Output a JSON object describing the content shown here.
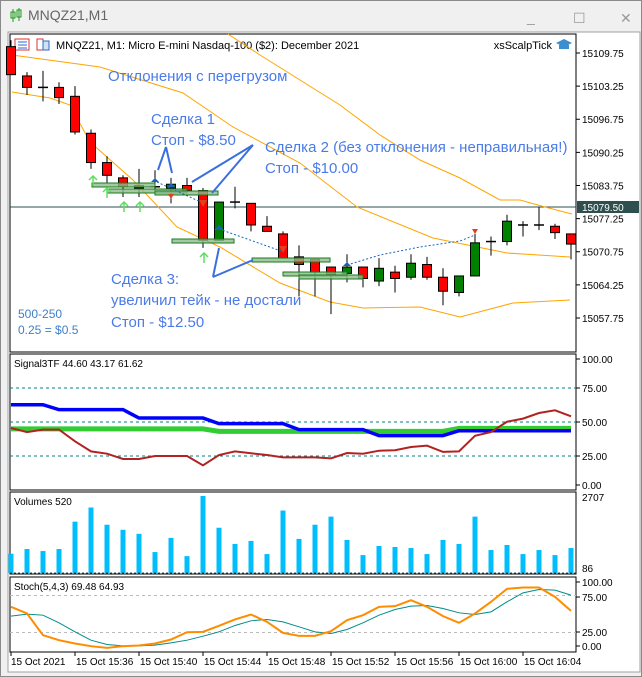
{
  "window": {
    "title": "MNQZ21,M1",
    "controls": {
      "minimize": "_",
      "maximize": "☐",
      "close": "✕"
    }
  },
  "chart_header": {
    "symbol_info": "MNQZ21, M1:  Micro E-mini Nasdaq-100 ($2): December 2021",
    "expert_name": "xsScalpTick"
  },
  "annotations": {
    "title": "Отклонения с перегрузом",
    "trade1_line1": "Сделка 1",
    "trade1_line2": "Стоп - $8.50",
    "trade2_line1": "Сделка 2 (без отклонения - неправильная!)",
    "trade2_line2": "Стоп - $10.00",
    "trade3_line1": "Сделка 3:",
    "trade3_line2": "увеличил тейк - не достали",
    "trade3_line3": "Стоп - $12.50",
    "note1": "500-250",
    "note2": "0.25 = $0.5"
  },
  "colors": {
    "bull": "#008000",
    "bear": "#ff0000",
    "band": "#ffa500",
    "annotation": "#4a7be8",
    "signal_blue": "#0000ff",
    "signal_green": "#32cd32",
    "signal_red": "#b22222",
    "volume": "#00bfff",
    "stoch_main": "#ff8c00",
    "stoch_signal": "#008b8b"
  },
  "chart_data": [
    {
      "type": "candlestick",
      "title": "MNQZ21, M1",
      "current_price_label": "15079.50",
      "current_price": 15079.5,
      "ylim": [
        15049.5,
        15113.5
      ],
      "yticks": [
        "15109.75",
        "15103.25",
        "15096.75",
        "15090.25",
        "15083.75",
        "15077.25",
        "15070.75",
        "15064.25",
        "15057.75"
      ],
      "xticks": [
        "15 Oct 2021",
        "15 Oct 15:36",
        "15 Oct 15:40",
        "15 Oct 15:44",
        "15 Oct 15:48",
        "15 Oct 15:52",
        "15 Oct 15:56",
        "15 Oct 16:00",
        "15 Oct 16:04"
      ],
      "ohlc": [
        [
          15111,
          15112.25,
          15105.5,
          15105.5
        ],
        [
          15105.25,
          15106,
          15101.5,
          15103
        ],
        [
          15103,
          15106.25,
          15100.25,
          15103
        ],
        [
          15103,
          15104,
          15099.75,
          15101
        ],
        [
          15101.25,
          15103.25,
          15093.75,
          15094.25
        ],
        [
          15094,
          15094.75,
          15087,
          15088.25
        ],
        [
          15088.25,
          15089.5,
          15084.25,
          15085.75
        ],
        [
          15085.25,
          15085.75,
          15081.5,
          15083.5
        ],
        [
          15083.75,
          15087,
          15081.5,
          15083.25
        ],
        [
          15083.5,
          15086.75,
          15082,
          15083.5
        ],
        [
          15083.25,
          15085.25,
          15080.25,
          15084
        ],
        [
          15083.75,
          15085.25,
          15082.75,
          15082.75
        ],
        [
          15082.75,
          15083.25,
          15071.5,
          15073
        ],
        [
          15073,
          15080.5,
          15073,
          15080.5
        ],
        [
          15080.5,
          15083.5,
          15079.25,
          15080.25
        ],
        [
          15080.25,
          15080.25,
          15074.75,
          15076
        ],
        [
          15075.75,
          15077.75,
          15074.75,
          15074.75
        ],
        [
          15074.25,
          15074.75,
          15069.5,
          15069.5
        ],
        [
          15069.75,
          15072,
          15062,
          15068.25
        ],
        [
          15069.25,
          15069.25,
          15062,
          15066.75
        ],
        [
          15067.75,
          15067.75,
          15058.5,
          15066.25
        ],
        [
          15066.5,
          15070.25,
          15064.75,
          15067.75
        ],
        [
          15067.75,
          15067.75,
          15063.75,
          15065.5
        ],
        [
          15065,
          15069.5,
          15064,
          15067.5
        ],
        [
          15066.75,
          15068,
          15062.75,
          15065.5
        ],
        [
          15065.75,
          15070.25,
          15065.25,
          15068.5
        ],
        [
          15068.25,
          15069.75,
          15065.25,
          15065.75
        ],
        [
          15065.75,
          15067.5,
          15060.25,
          15063
        ],
        [
          15062.75,
          15066,
          15062,
          15066
        ],
        [
          15066,
          15074.25,
          15066,
          15072.5
        ],
        [
          15072.75,
          15073.75,
          15070,
          15072.75
        ],
        [
          15072.75,
          15078,
          15072,
          15076.75
        ],
        [
          15076,
          15076.75,
          15073.75,
          15076
        ],
        [
          15076,
          15079.5,
          15075,
          15076
        ],
        [
          15075.75,
          15076.25,
          15073.25,
          15074.5
        ],
        [
          15074.25,
          15074.25,
          15069.25,
          15072.25
        ]
      ]
    },
    {
      "type": "line",
      "title": "Signal3TF 44.60 43.17 61.62",
      "ylim": [
        0,
        100
      ],
      "yticks": [
        "100.00",
        "75.00",
        "50.00",
        "25.00",
        "0.00"
      ],
      "levels": [
        75,
        50,
        25
      ],
      "series": [
        {
          "name": "blue",
          "values": [
            62.7,
            62.7,
            62.7,
            59.1,
            59.1,
            59.1,
            59.1,
            59.1,
            52.9,
            52.9,
            52.9,
            52.9,
            52.9,
            48.8,
            48.8,
            48.8,
            48.8,
            48.8,
            44.4,
            44.4,
            44.4,
            44.4,
            44.4,
            40,
            40,
            40,
            40,
            40,
            43.6,
            43.6,
            43.6,
            43.6,
            43.6,
            43.6,
            43.6,
            43.6
          ]
        },
        {
          "name": "green",
          "values": [
            44.9,
            44.9,
            44.9,
            44.9,
            44.9,
            44.9,
            44.9,
            44.9,
            44.9,
            44.9,
            44.9,
            44.9,
            44.9,
            43.1,
            43.1,
            43.1,
            43.1,
            43.1,
            43.1,
            43.1,
            43.1,
            43.1,
            43.1,
            43.1,
            43.1,
            43.1,
            43.1,
            43.1,
            45.3,
            45.3,
            45.3,
            45.3,
            45.3,
            45.3,
            45.3,
            45.3
          ]
        },
        {
          "name": "red",
          "values": [
            45.6,
            42.6,
            44.4,
            44.4,
            35.8,
            28.4,
            26.7,
            22.8,
            22.8,
            25,
            25,
            25,
            18.1,
            25.7,
            28.4,
            27,
            25.7,
            24,
            24,
            24,
            23.3,
            27.2,
            26.7,
            28.9,
            29.2,
            31.6,
            32.6,
            28,
            28.4,
            39.9,
            42.6,
            50.2,
            52.5,
            56.6,
            58.6,
            54.2
          ]
        }
      ]
    },
    {
      "type": "bar",
      "title": "Volumes 520",
      "ylim": [
        86,
        2707
      ],
      "yticks": [
        "2707",
        "86"
      ],
      "values": [
        677,
        843,
        772,
        843,
        1804,
        2303,
        1697,
        1519,
        1377,
        736,
        1234,
        593,
        2707,
        1591,
        1021,
        1128,
        665,
        2196,
        1199,
        1697,
        1982,
        1163,
        629,
        950,
        914,
        878,
        665,
        1163,
        1021,
        1982,
        807,
        985,
        665,
        807,
        629,
        878
      ]
    },
    {
      "type": "line",
      "title": "Stoch(5,4,3) 69.48 64.93",
      "ylim": [
        0,
        100
      ],
      "yticks": [
        "100.00",
        "75.00",
        "25.00",
        "0.00"
      ],
      "levels": [
        75,
        25
      ],
      "series": [
        {
          "name": "main",
          "values": [
            59.7,
            50.7,
            21.4,
            14.6,
            10.1,
            6.5,
            4.3,
            6.5,
            7.4,
            10.1,
            15.5,
            25.4,
            25.9,
            34,
            42.6,
            49.3,
            39.4,
            24.5,
            20.5,
            20.5,
            26.8,
            41.7,
            48.4,
            59.7,
            60.6,
            68.7,
            59.7,
            47.1,
            38.1,
            50.7,
            66.4,
            84,
            85.8,
            85.8,
            73.2,
            54.3
          ]
        },
        {
          "name": "signal",
          "values": [
            47.1,
            49.8,
            48.4,
            38.1,
            25.9,
            14.6,
            8.8,
            7,
            7,
            7.9,
            11,
            14.6,
            20,
            25.9,
            34.5,
            40.8,
            42.6,
            39.4,
            32.7,
            25.9,
            23.6,
            29.1,
            38.1,
            48.4,
            56.1,
            60.6,
            61.5,
            57.4,
            51.6,
            49.3,
            52.9,
            66.4,
            78.6,
            83.1,
            82.2,
            75.5
          ]
        }
      ]
    }
  ]
}
